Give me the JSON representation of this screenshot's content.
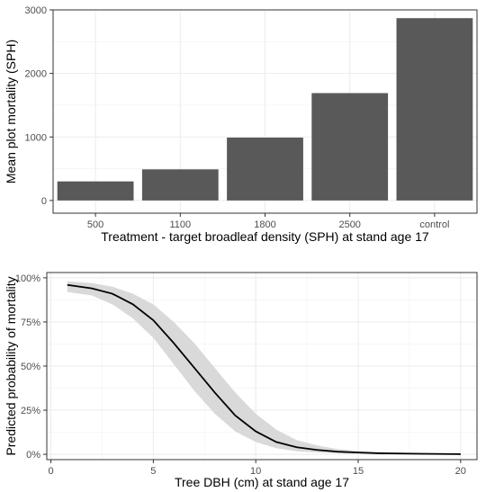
{
  "chart_data": [
    {
      "type": "bar",
      "xlabel": "Treatment - target broadleaf density (SPH) at stand age 17",
      "ylabel": "Mean plot mortality (SPH)",
      "categories": [
        "500",
        "1100",
        "1800",
        "2500",
        "control"
      ],
      "values": [
        300,
        490,
        990,
        1690,
        2870
      ],
      "ylim": [
        -200,
        3000
      ],
      "yticks": [
        0,
        1000,
        2000,
        3000
      ],
      "ytick_labels": [
        "0",
        "1000",
        "2000",
        "3000"
      ],
      "grid": true,
      "bar_color": "#595959"
    },
    {
      "type": "line",
      "xlabel": "Tree DBH (cm) at stand age 17",
      "ylabel": "Predicted probability of mortality",
      "xlim": [
        -0.2,
        20.8
      ],
      "ylim": [
        -0.03,
        1.03
      ],
      "xticks": [
        0,
        5,
        10,
        15,
        20
      ],
      "xtick_labels": [
        "0",
        "5",
        "10",
        "15",
        "20"
      ],
      "yticks": [
        0,
        0.25,
        0.5,
        0.75,
        1.0
      ],
      "ytick_labels": [
        "0%",
        "25%",
        "50%",
        "75%",
        "100%"
      ],
      "grid": true,
      "series": [
        {
          "x": [
            0.8,
            2,
            3,
            4,
            5,
            6,
            7,
            8,
            9,
            10,
            11,
            12,
            13,
            14,
            15,
            16,
            18,
            20
          ],
          "y": [
            0.96,
            0.94,
            0.91,
            0.85,
            0.76,
            0.63,
            0.49,
            0.35,
            0.22,
            0.13,
            0.07,
            0.04,
            0.025,
            0.015,
            0.01,
            0.006,
            0.003,
            0.001
          ],
          "lower": [
            0.92,
            0.9,
            0.85,
            0.77,
            0.66,
            0.51,
            0.36,
            0.23,
            0.13,
            0.07,
            0.035,
            0.017,
            0.01,
            0.006,
            0.003,
            0.002,
            0.001,
            0.0005
          ],
          "upper": [
            0.98,
            0.97,
            0.95,
            0.91,
            0.85,
            0.75,
            0.63,
            0.49,
            0.35,
            0.23,
            0.14,
            0.08,
            0.05,
            0.03,
            0.02,
            0.012,
            0.006,
            0.003
          ],
          "color": "#000000",
          "band_color": "#d9d9d9"
        }
      ]
    }
  ]
}
